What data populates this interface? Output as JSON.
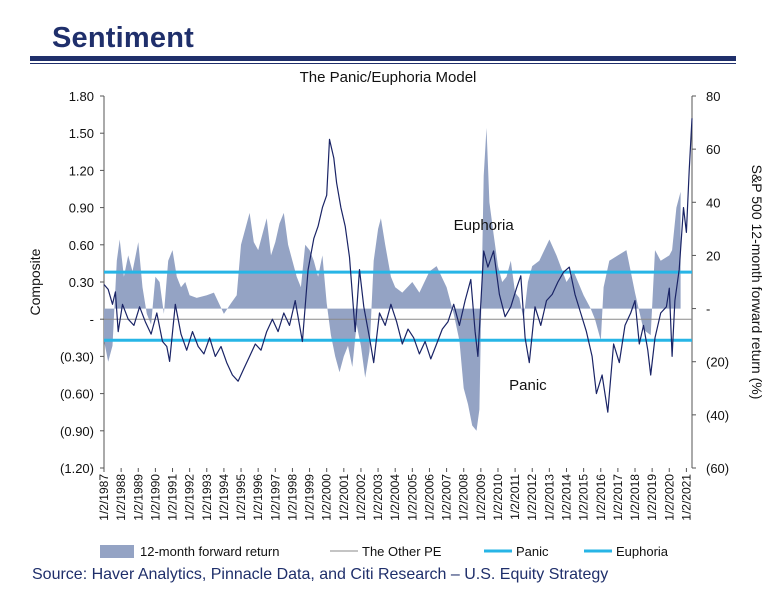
{
  "slide_title": "Sentiment",
  "source": "Source: Haver Analytics, Pinnacle Data, and Citi Research – U.S. Equity Strategy",
  "colors": {
    "brand_navy": "#1f2f6b",
    "forward_return": "#94a3c4",
    "other_pe": "#1a2466",
    "panic": "#27b5e6",
    "euphoria": "#27b5e6",
    "zero_line": "#8a8a8a"
  },
  "chart_data": {
    "type": "area",
    "title": "The Panic/Euphoria Model",
    "ylabel": "Composite",
    "y2label": "S&P 500 12-month forward return (%)",
    "ylim": [
      -1.2,
      1.8
    ],
    "y2lim": [
      -60,
      80
    ],
    "yticks": [
      {
        "value": 1.8,
        "label": "1.80"
      },
      {
        "value": 1.5,
        "label": "1.50"
      },
      {
        "value": 1.2,
        "label": "1.20"
      },
      {
        "value": 0.9,
        "label": "0.90"
      },
      {
        "value": 0.6,
        "label": "0.60"
      },
      {
        "value": 0.3,
        "label": "0.30"
      },
      {
        "value": 0.0,
        "label": "-"
      },
      {
        "value": -0.3,
        "label": "(0.30)"
      },
      {
        "value": -0.6,
        "label": "(0.60)"
      },
      {
        "value": -0.9,
        "label": "(0.90)"
      },
      {
        "value": -1.2,
        "label": "(1.20)"
      }
    ],
    "y2ticks": [
      {
        "value": 80,
        "label": "80"
      },
      {
        "value": 60,
        "label": "60"
      },
      {
        "value": 40,
        "label": "40"
      },
      {
        "value": 20,
        "label": "20"
      },
      {
        "value": 0,
        "label": "-"
      },
      {
        "value": -20,
        "label": "(20)"
      },
      {
        "value": -40,
        "label": "(40)"
      },
      {
        "value": -60,
        "label": "(60)"
      }
    ],
    "xlim": [
      "1/2/1987",
      "4/30/2021"
    ],
    "xticks": [
      "1/2/1987",
      "1/2/1988",
      "1/2/1989",
      "1/2/1990",
      "1/2/1991",
      "1/2/1992",
      "1/2/1993",
      "1/2/1994",
      "1/2/1995",
      "1/2/1996",
      "1/2/1997",
      "1/2/1998",
      "1/2/1999",
      "1/2/2000",
      "1/2/2001",
      "1/2/2002",
      "1/2/2003",
      "1/2/2004",
      "1/2/2005",
      "1/2/2006",
      "1/2/2007",
      "1/2/2008",
      "1/2/2009",
      "1/2/2010",
      "1/2/2011",
      "1/2/2012",
      "1/2/2013",
      "1/2/2014",
      "1/2/2015",
      "1/2/2016",
      "1/2/2017",
      "1/2/2018",
      "1/2/2019",
      "1/2/2020",
      "1/2/2021"
    ],
    "thresholds": {
      "euphoria": 0.38,
      "panic": -0.17
    },
    "annotations": [
      {
        "text": "Euphoria",
        "date": "3/1/2009",
        "value": 0.72
      },
      {
        "text": "Panic",
        "date": "10/1/2011",
        "value": -0.57
      }
    ],
    "legend": {
      "position": "bottom",
      "items": [
        {
          "label": "12-month forward return",
          "kind": "area",
          "color": "#94a3c4"
        },
        {
          "label": "The Other PE",
          "kind": "line",
          "color": "#8a8a8a"
        },
        {
          "label": "Panic",
          "kind": "line",
          "color": "#27b5e6"
        },
        {
          "label": "Euphoria",
          "kind": "line",
          "color": "#27b5e6"
        }
      ]
    },
    "series": [
      {
        "name": "12-month forward return",
        "axis": "right",
        "kind": "area",
        "x": [
          "1/2/1987",
          "4/1/1987",
          "7/1/1987",
          "10/1/1987",
          "12/1/1987",
          "3/1/1988",
          "6/1/1988",
          "9/1/1988",
          "1/2/1989",
          "4/1/1989",
          "7/1/1989",
          "10/1/1989",
          "1/2/1990",
          "4/1/1990",
          "7/1/1990",
          "10/1/1990",
          "1/2/1991",
          "4/1/1991",
          "7/1/1991",
          "10/1/1991",
          "1/2/1992",
          "6/1/1992",
          "1/2/1993",
          "6/1/1993",
          "1/2/1994",
          "6/1/1994",
          "10/1/1994",
          "1/2/1995",
          "4/1/1995",
          "7/1/1995",
          "10/1/1995",
          "1/2/1996",
          "4/1/1996",
          "7/1/1996",
          "10/1/1996",
          "1/2/1997",
          "4/1/1997",
          "7/1/1997",
          "10/1/1997",
          "1/2/1998",
          "4/1/1998",
          "7/1/1998",
          "10/1/1998",
          "1/2/1999",
          "4/1/1999",
          "7/1/1999",
          "10/1/1999",
          "1/2/2000",
          "4/1/2000",
          "7/1/2000",
          "10/1/2000",
          "1/2/2001",
          "4/1/2001",
          "7/1/2001",
          "10/1/2001",
          "1/2/2002",
          "4/1/2002",
          "7/1/2002",
          "10/1/2002",
          "1/2/2003",
          "3/1/2003",
          "6/1/2003",
          "10/1/2003",
          "1/2/2004",
          "6/1/2004",
          "1/2/2005",
          "6/1/2005",
          "1/2/2006",
          "6/1/2006",
          "1/2/2007",
          "6/1/2007",
          "10/1/2007",
          "1/2/2008",
          "4/1/2008",
          "7/1/2008",
          "10/1/2008",
          "12/1/2008",
          "3/1/2009",
          "5/1/2009",
          "7/1/2009",
          "10/1/2009",
          "1/2/2010",
          "4/1/2010",
          "7/1/2010",
          "10/1/2010",
          "1/2/2011",
          "4/1/2011",
          "7/1/2011",
          "10/1/2011",
          "1/2/2012",
          "6/1/2012",
          "1/2/2013",
          "6/1/2013",
          "1/2/2014",
          "6/1/2014",
          "1/2/2015",
          "6/1/2015",
          "9/1/2015",
          "1/2/2016",
          "3/1/2016",
          "7/1/2016",
          "1/2/2017",
          "7/1/2017",
          "1/2/2018",
          "7/1/2018",
          "12/1/2018",
          "3/1/2019",
          "7/1/2019",
          "1/2/2020",
          "3/1/2020",
          "6/1/2020",
          "9/1/2020"
        ],
        "values": [
          -12,
          -20,
          -14,
          18,
          26,
          12,
          20,
          14,
          25,
          8,
          -2,
          -6,
          12,
          10,
          -2,
          18,
          22,
          12,
          8,
          10,
          5,
          4,
          5,
          6,
          -2,
          2,
          5,
          24,
          30,
          36,
          25,
          22,
          28,
          34,
          20,
          25,
          32,
          36,
          24,
          18,
          12,
          8,
          24,
          22,
          18,
          12,
          20,
          2,
          -10,
          -18,
          -24,
          -18,
          -14,
          -22,
          -6,
          -14,
          -26,
          -16,
          18,
          30,
          34,
          24,
          12,
          8,
          6,
          10,
          6,
          14,
          16,
          8,
          -2,
          -12,
          -30,
          -36,
          -44,
          -46,
          -38,
          50,
          68,
          40,
          28,
          16,
          10,
          12,
          18,
          6,
          4,
          -4,
          10,
          16,
          18,
          26,
          20,
          10,
          14,
          5,
          0,
          -4,
          -12,
          8,
          18,
          20,
          22,
          6,
          -8,
          -10,
          22,
          18,
          20,
          22,
          38,
          44
        ]
      },
      {
        "name": "The Other PE",
        "axis": "left",
        "kind": "line",
        "x": [
          "1/2/1987",
          "4/1/1987",
          "7/1/1987",
          "9/1/1987",
          "11/1/1987",
          "2/1/1988",
          "6/1/1988",
          "10/1/1988",
          "2/1/1989",
          "6/1/1989",
          "10/1/1989",
          "2/1/1990",
          "6/1/1990",
          "9/1/1990",
          "11/1/1990",
          "3/1/1991",
          "7/1/1991",
          "11/1/1991",
          "3/1/1992",
          "7/1/1992",
          "11/1/1992",
          "3/1/1993",
          "7/1/1993",
          "11/1/1993",
          "3/1/1994",
          "7/1/1994",
          "11/1/1994",
          "3/1/1995",
          "7/1/1995",
          "11/1/1995",
          "3/1/1996",
          "7/1/1996",
          "11/1/1996",
          "3/1/1997",
          "7/1/1997",
          "11/1/1997",
          "3/1/1998",
          "8/1/1998",
          "12/1/1998",
          "4/1/1999",
          "7/1/1999",
          "10/1/1999",
          "1/2/2000",
          "3/1/2000",
          "6/1/2000",
          "8/1/2000",
          "11/1/2000",
          "2/1/2001",
          "5/1/2001",
          "9/1/2001",
          "12/1/2001",
          "3/1/2002",
          "7/1/2002",
          "10/1/2002",
          "2/1/2003",
          "6/1/2003",
          "10/1/2003",
          "2/1/2004",
          "6/1/2004",
          "10/1/2004",
          "2/1/2005",
          "6/1/2005",
          "10/1/2005",
          "2/1/2006",
          "6/1/2006",
          "10/1/2006",
          "2/1/2007",
          "6/1/2007",
          "10/1/2007",
          "2/1/2008",
          "6/1/2008",
          "9/1/2008",
          "11/1/2008",
          "3/1/2009",
          "6/1/2009",
          "10/1/2009",
          "2/1/2010",
          "6/1/2010",
          "10/1/2010",
          "2/1/2011",
          "5/1/2011",
          "8/1/2011",
          "11/1/2011",
          "3/1/2012",
          "7/1/2012",
          "11/1/2012",
          "3/1/2013",
          "7/1/2013",
          "11/1/2013",
          "3/1/2014",
          "7/1/2014",
          "11/1/2014",
          "3/1/2015",
          "7/1/2015",
          "10/1/2015",
          "2/1/2016",
          "6/1/2016",
          "10/1/2016",
          "2/1/2017",
          "6/1/2017",
          "10/1/2017",
          "1/2/2018",
          "4/1/2018",
          "7/1/2018",
          "10/1/2018",
          "12/1/2018",
          "3/1/2019",
          "7/1/2019",
          "11/1/2019",
          "1/2/2020",
          "3/1/2020",
          "5/1/2020",
          "8/1/2020",
          "11/1/2020",
          "1/2/2021",
          "3/1/2021",
          "4/30/2021"
        ],
        "values": [
          0.28,
          0.24,
          0.12,
          0.22,
          -0.1,
          0.12,
          0.0,
          -0.05,
          0.1,
          -0.02,
          -0.12,
          0.05,
          -0.18,
          -0.22,
          -0.34,
          0.12,
          -0.12,
          -0.25,
          -0.1,
          -0.22,
          -0.28,
          -0.15,
          -0.3,
          -0.22,
          -0.35,
          -0.45,
          -0.5,
          -0.4,
          -0.3,
          -0.2,
          -0.25,
          -0.1,
          0.0,
          -0.1,
          0.05,
          -0.05,
          0.15,
          -0.18,
          0.4,
          0.65,
          0.75,
          0.9,
          1.0,
          1.45,
          1.3,
          1.1,
          0.9,
          0.75,
          0.5,
          -0.1,
          0.4,
          0.1,
          -0.15,
          -0.35,
          0.05,
          -0.05,
          0.12,
          -0.02,
          -0.2,
          -0.08,
          -0.15,
          -0.28,
          -0.18,
          -0.32,
          -0.2,
          -0.08,
          -0.02,
          0.12,
          -0.05,
          0.15,
          0.32,
          -0.1,
          -0.3,
          0.55,
          0.42,
          0.55,
          0.2,
          0.02,
          0.1,
          0.25,
          0.35,
          -0.15,
          -0.35,
          0.1,
          -0.05,
          0.15,
          0.2,
          0.3,
          0.38,
          0.42,
          0.2,
          0.05,
          -0.1,
          -0.3,
          -0.6,
          -0.45,
          -0.75,
          -0.2,
          -0.35,
          -0.05,
          0.05,
          0.15,
          -0.2,
          -0.05,
          -0.25,
          -0.45,
          -0.15,
          0.05,
          0.1,
          0.25,
          -0.3,
          0.15,
          0.4,
          0.9,
          0.7,
          1.2,
          1.62
        ]
      }
    ]
  }
}
